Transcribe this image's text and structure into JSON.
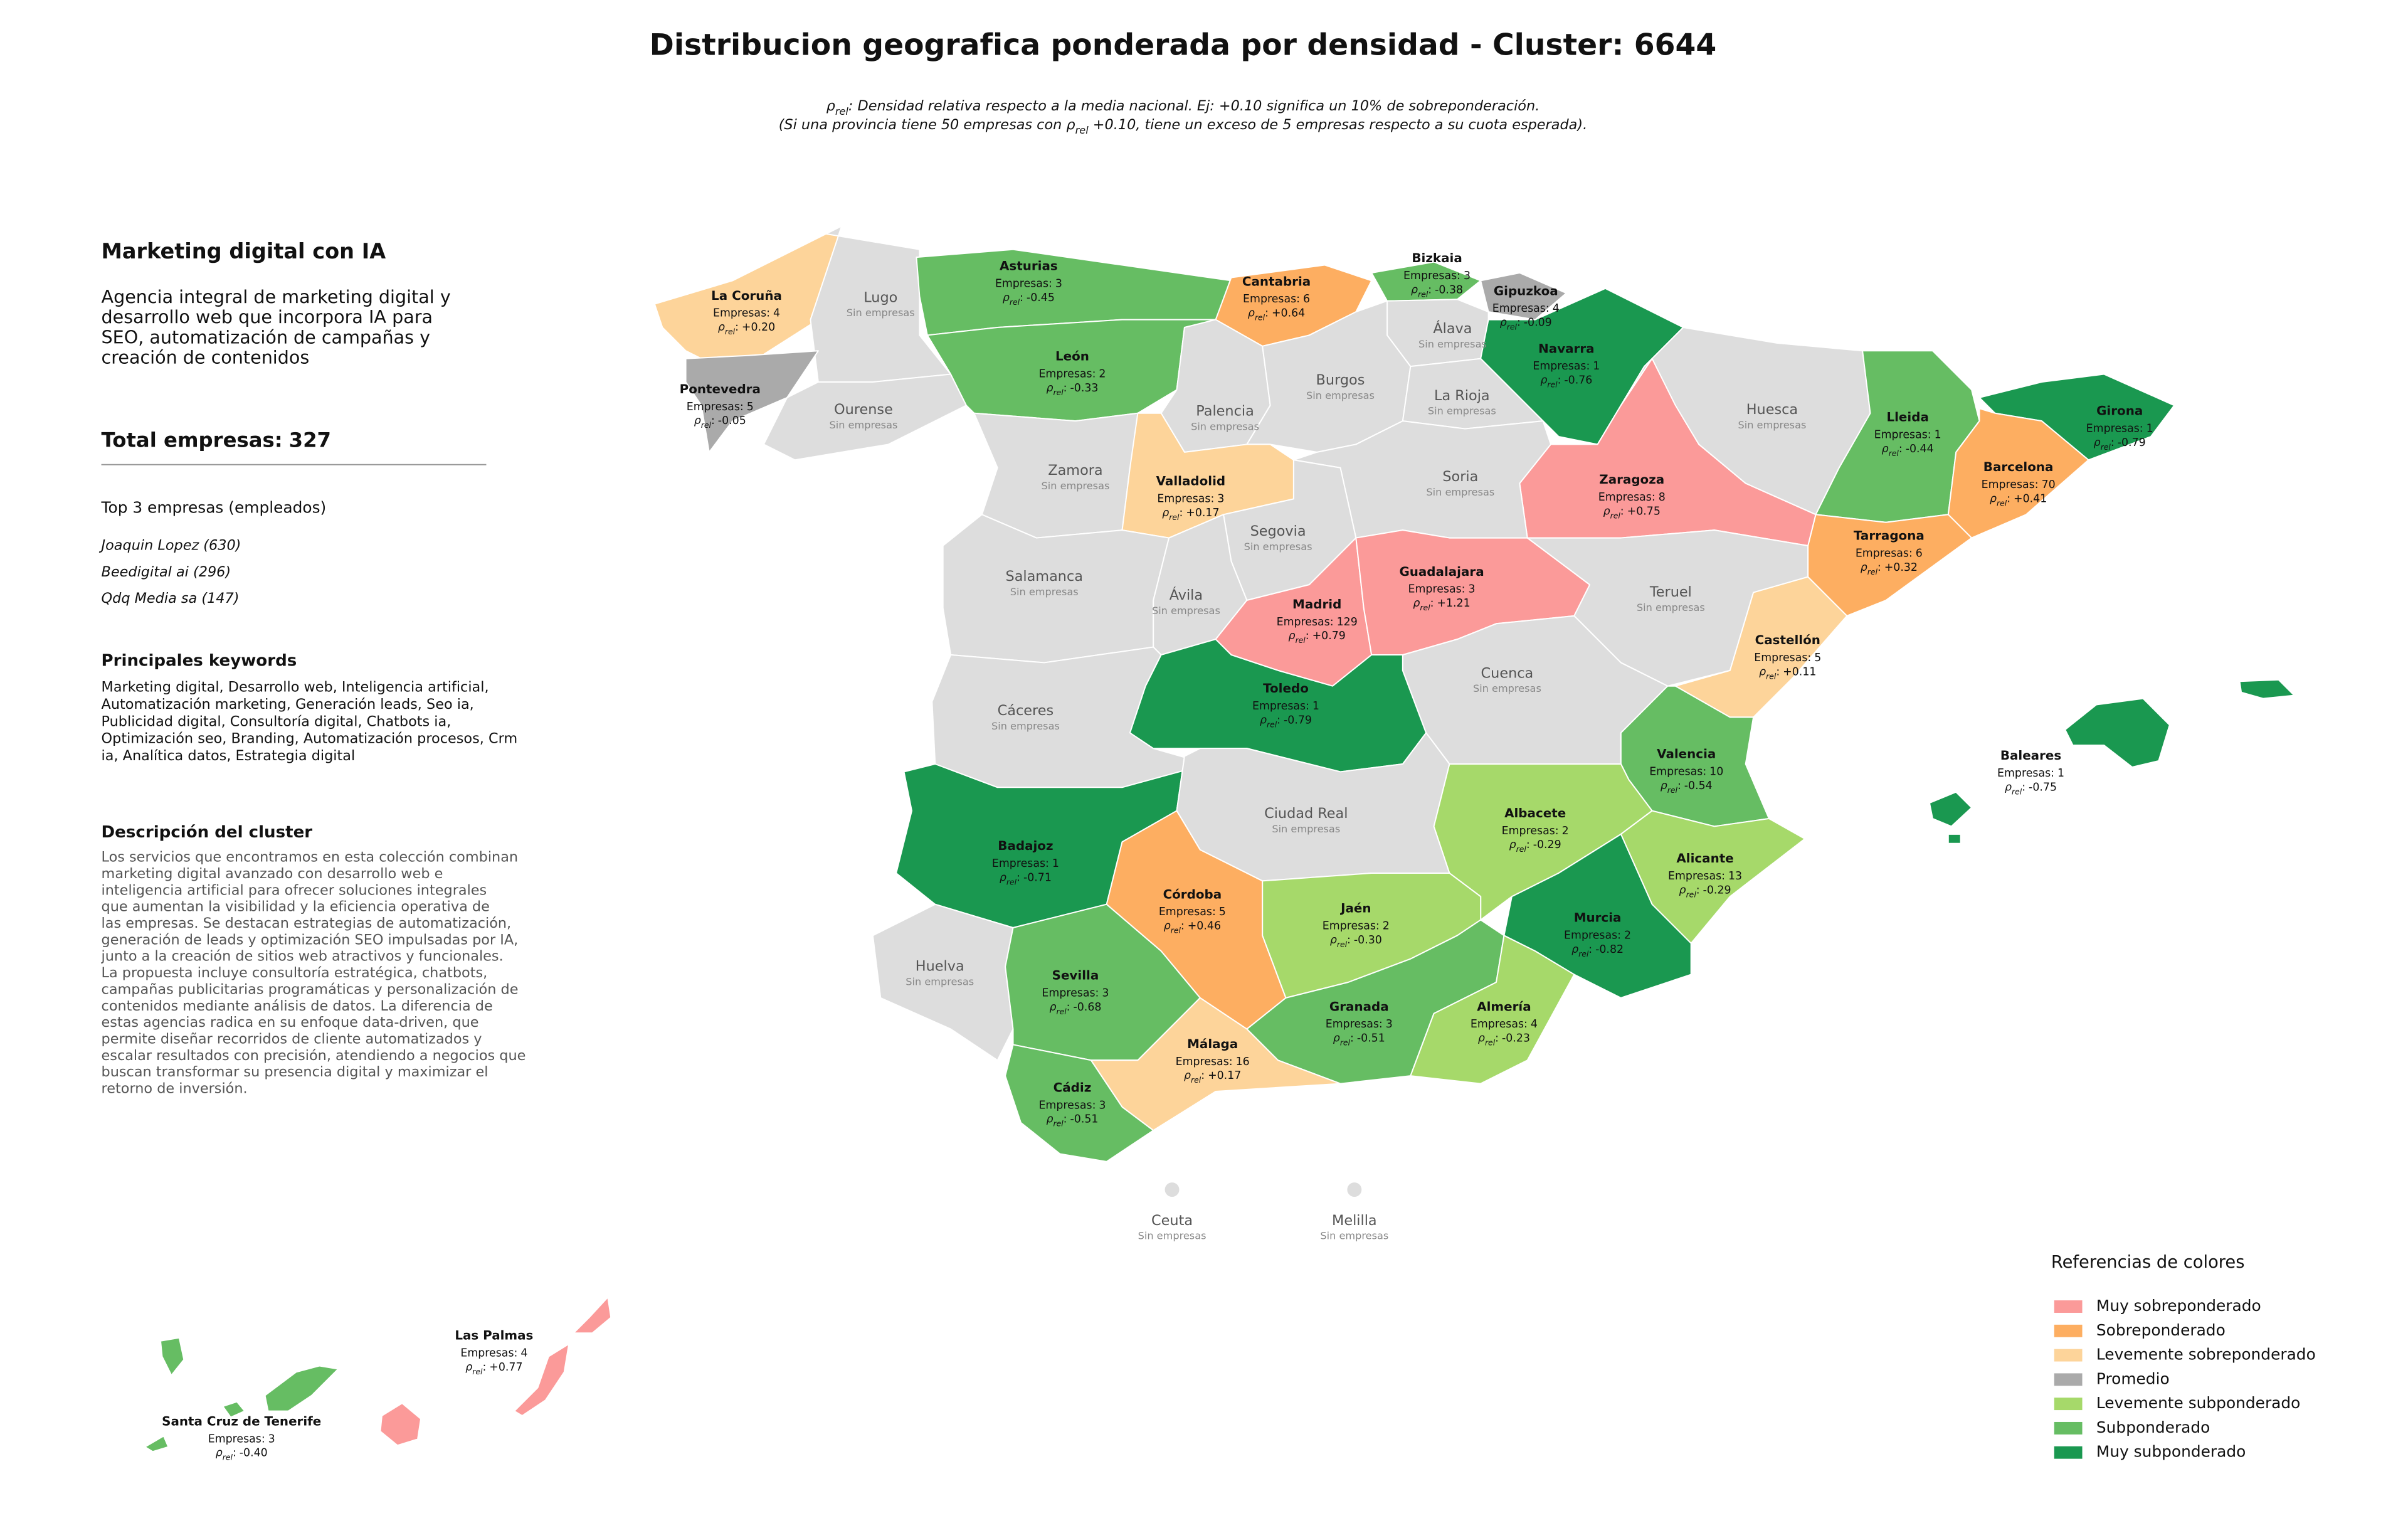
{
  "header": {
    "title": "Distribucion geografica ponderada por densidad - Cluster: 6644",
    "subtitle_line1": ": Densidad relativa respecto a la media nacional. Ej: +0.10 significa un 10% de sobreponderación.",
    "subtitle_line2_start": "(Si una provincia tiene 50 empresas con ",
    "subtitle_line2_end": " +0.10, tiene un exceso de 5 empresas respecto a su cuota esperada)."
  },
  "symbols": {
    "rho": "ρ",
    "rho_subscript": "rel",
    "rho_separator": ":",
    "companies_label": "Empresas:",
    "no_companies_label": "Sin empresas"
  },
  "panel": {
    "heading": "Marketing digital con IA",
    "summary_lines": [
      "Agencia integral de marketing digital y",
      "desarrollo web que incorpora IA para",
      "SEO, automatización de campañas y",
      "creación de contenidos"
    ],
    "total": {
      "label": "Total empresas:",
      "value": 327
    },
    "top_heading": "Top 3 empresas (empleados)",
    "top_companies": [
      "Joaquin Lopez (630)",
      "Beedigital ai (296)",
      "Qdq Media sa (147)"
    ],
    "keywords_heading": "Principales keywords",
    "keywords_lines": [
      "Marketing digital, Desarrollo web, Inteligencia artificial,",
      "Automatización marketing, Generación leads, Seo ia,",
      "Publicidad digital, Consultoría digital, Chatbots ia,",
      "Optimización seo, Branding, Automatización procesos, Crm",
      "ia, Analítica datos, Estrategia digital"
    ],
    "description_heading": "Descripción del cluster",
    "description_lines": [
      "Los servicios que encontramos en esta colección combinan",
      "marketing digital avanzado con desarrollo web e",
      "inteligencia artificial para ofrecer soluciones integrales",
      "que aumentan la visibilidad y la eficiencia operativa de",
      "las empresas. Se destacan estrategias de automatización,",
      "generación de leads y optimización SEO impulsadas por IA,",
      "junto a la creación de sitios web atractivos y funcionales.",
      "La propuesta incluye consultoría estratégica, chatbots,",
      "campañas publicitarias programáticas y personalización de",
      "contenidos mediante análisis de datos. La diferencia de",
      "estas agencias radica en su enfoque data-driven, que",
      "permite diseñar recorridos de cliente automatizados y",
      "escalar resultados con precisión, atendiendo a negocios que",
      "buscan transformar su presencia digital y maximizar el",
      "retorno de inversión."
    ]
  },
  "map": {
    "provinces": [
      {
        "name": "La Coruña",
        "companies": 4,
        "rho": 0.2,
        "rho_label": "+0.20",
        "color": "#fdd49a"
      },
      {
        "name": "Lugo",
        "color": "#dddddd"
      },
      {
        "name": "Pontevedra",
        "companies": 5,
        "rho": -0.05,
        "rho_label": "-0.05",
        "color": "#aaaaaa"
      },
      {
        "name": "Ourense",
        "color": "#dddddd"
      },
      {
        "name": "Asturias",
        "companies": 3,
        "rho": -0.45,
        "rho_label": "-0.45",
        "color": "#66bd63"
      },
      {
        "name": "Cantabria",
        "companies": 6,
        "rho": 0.64,
        "rho_label": "+0.64",
        "color": "#fdae61"
      },
      {
        "name": "Bizkaia",
        "companies": 3,
        "rho": -0.38,
        "rho_label": "-0.38",
        "color": "#66bd63"
      },
      {
        "name": "Gipuzkoa",
        "companies": 4,
        "rho": -0.09,
        "rho_label": "-0.09",
        "color": "#aaaaaa"
      },
      {
        "name": "Álava",
        "color": "#dddddd"
      },
      {
        "name": "Navarra",
        "companies": 1,
        "rho": -0.76,
        "rho_label": "-0.76",
        "color": "#1a9850"
      },
      {
        "name": "León",
        "companies": 2,
        "rho": -0.33,
        "rho_label": "-0.33",
        "color": "#66bd63"
      },
      {
        "name": "Palencia",
        "color": "#dddddd"
      },
      {
        "name": "Burgos",
        "color": "#dddddd"
      },
      {
        "name": "La Rioja",
        "color": "#dddddd"
      },
      {
        "name": "Huesca",
        "color": "#dddddd"
      },
      {
        "name": "Lleida",
        "companies": 1,
        "rho": -0.44,
        "rho_label": "-0.44",
        "color": "#66bd63"
      },
      {
        "name": "Girona",
        "companies": 1,
        "rho": -0.79,
        "rho_label": "-0.79",
        "color": "#1a9850"
      },
      {
        "name": "Barcelona",
        "companies": 70,
        "rho": 0.41,
        "rho_label": "+0.41",
        "color": "#fdae61"
      },
      {
        "name": "Tarragona",
        "companies": 6,
        "rho": 0.32,
        "rho_label": "+0.32",
        "color": "#fdae61"
      },
      {
        "name": "Zaragoza",
        "companies": 8,
        "rho": 0.75,
        "rho_label": "+0.75",
        "color": "#fb9a99"
      },
      {
        "name": "Zamora",
        "color": "#dddddd"
      },
      {
        "name": "Valladolid",
        "companies": 3,
        "rho": 0.17,
        "rho_label": "+0.17",
        "color": "#fdd49a"
      },
      {
        "name": "Soria",
        "color": "#dddddd"
      },
      {
        "name": "Segovia",
        "color": "#dddddd"
      },
      {
        "name": "Salamanca",
        "color": "#dddddd"
      },
      {
        "name": "Ávila",
        "color": "#dddddd"
      },
      {
        "name": "Madrid",
        "companies": 129,
        "rho": 0.79,
        "rho_label": "+0.79",
        "color": "#fb9a99"
      },
      {
        "name": "Guadalajara",
        "companies": 3,
        "rho": 1.21,
        "rho_label": "+1.21",
        "color": "#fb9a99"
      },
      {
        "name": "Teruel",
        "color": "#dddddd"
      },
      {
        "name": "Castellón",
        "companies": 5,
        "rho": 0.11,
        "rho_label": "+0.11",
        "color": "#fdd49a"
      },
      {
        "name": "Cáceres",
        "color": "#dddddd"
      },
      {
        "name": "Toledo",
        "companies": 1,
        "rho": -0.79,
        "rho_label": "-0.79",
        "color": "#1a9850"
      },
      {
        "name": "Cuenca",
        "color": "#dddddd"
      },
      {
        "name": "Valencia",
        "companies": 10,
        "rho": -0.54,
        "rho_label": "-0.54",
        "color": "#66bd63"
      },
      {
        "name": "Badajoz",
        "companies": 1,
        "rho": -0.71,
        "rho_label": "-0.71",
        "color": "#1a9850"
      },
      {
        "name": "Ciudad Real",
        "color": "#dddddd"
      },
      {
        "name": "Albacete",
        "companies": 2,
        "rho": -0.29,
        "rho_label": "-0.29",
        "color": "#a6d96a"
      },
      {
        "name": "Alicante",
        "companies": 13,
        "rho": -0.29,
        "rho_label": "-0.29",
        "color": "#a6d96a"
      },
      {
        "name": "Murcia",
        "companies": 2,
        "rho": -0.82,
        "rho_label": "-0.82",
        "color": "#1a9850"
      },
      {
        "name": "Córdoba",
        "companies": 5,
        "rho": 0.46,
        "rho_label": "+0.46",
        "color": "#fdae61"
      },
      {
        "name": "Jaén",
        "companies": 2,
        "rho": -0.3,
        "rho_label": "-0.30",
        "color": "#a6d96a"
      },
      {
        "name": "Huelva",
        "color": "#dddddd"
      },
      {
        "name": "Sevilla",
        "companies": 3,
        "rho": -0.68,
        "rho_label": "-0.68",
        "color": "#66bd63"
      },
      {
        "name": "Granada",
        "companies": 3,
        "rho": -0.51,
        "rho_label": "-0.51",
        "color": "#66bd63"
      },
      {
        "name": "Almería",
        "companies": 4,
        "rho": -0.23,
        "rho_label": "-0.23",
        "color": "#a6d96a"
      },
      {
        "name": "Málaga",
        "companies": 16,
        "rho": 0.17,
        "rho_label": "+0.17",
        "color": "#fdd49a"
      },
      {
        "name": "Cádiz",
        "companies": 3,
        "rho": -0.51,
        "rho_label": "-0.51",
        "color": "#66bd63"
      },
      {
        "name": "Baleares",
        "companies": 1,
        "rho": -0.75,
        "rho_label": "-0.75",
        "color": "#1a9850"
      },
      {
        "name": "Las Palmas",
        "companies": 4,
        "rho": 0.77,
        "rho_label": "+0.77",
        "color": "#fb9a99"
      },
      {
        "name": "Santa Cruz de Tenerife",
        "companies": 3,
        "rho": -0.4,
        "rho_label": "-0.40",
        "color": "#66bd63"
      },
      {
        "name": "Ceuta",
        "color": "#dddddd"
      },
      {
        "name": "Melilla",
        "color": "#dddddd"
      }
    ]
  },
  "legend": {
    "title": "Referencias de colores",
    "items": [
      {
        "label": "Muy sobreponderado",
        "color": "#fb9a99"
      },
      {
        "label": "Sobreponderado",
        "color": "#fdae61"
      },
      {
        "label": "Levemente sobreponderado",
        "color": "#fdd49a"
      },
      {
        "label": "Promedio",
        "color": "#aaaaaa"
      },
      {
        "label": "Levemente subponderado",
        "color": "#a6d96a"
      },
      {
        "label": "Subponderado",
        "color": "#66bd63"
      },
      {
        "label": "Muy subponderado",
        "color": "#1a9850"
      }
    ]
  }
}
